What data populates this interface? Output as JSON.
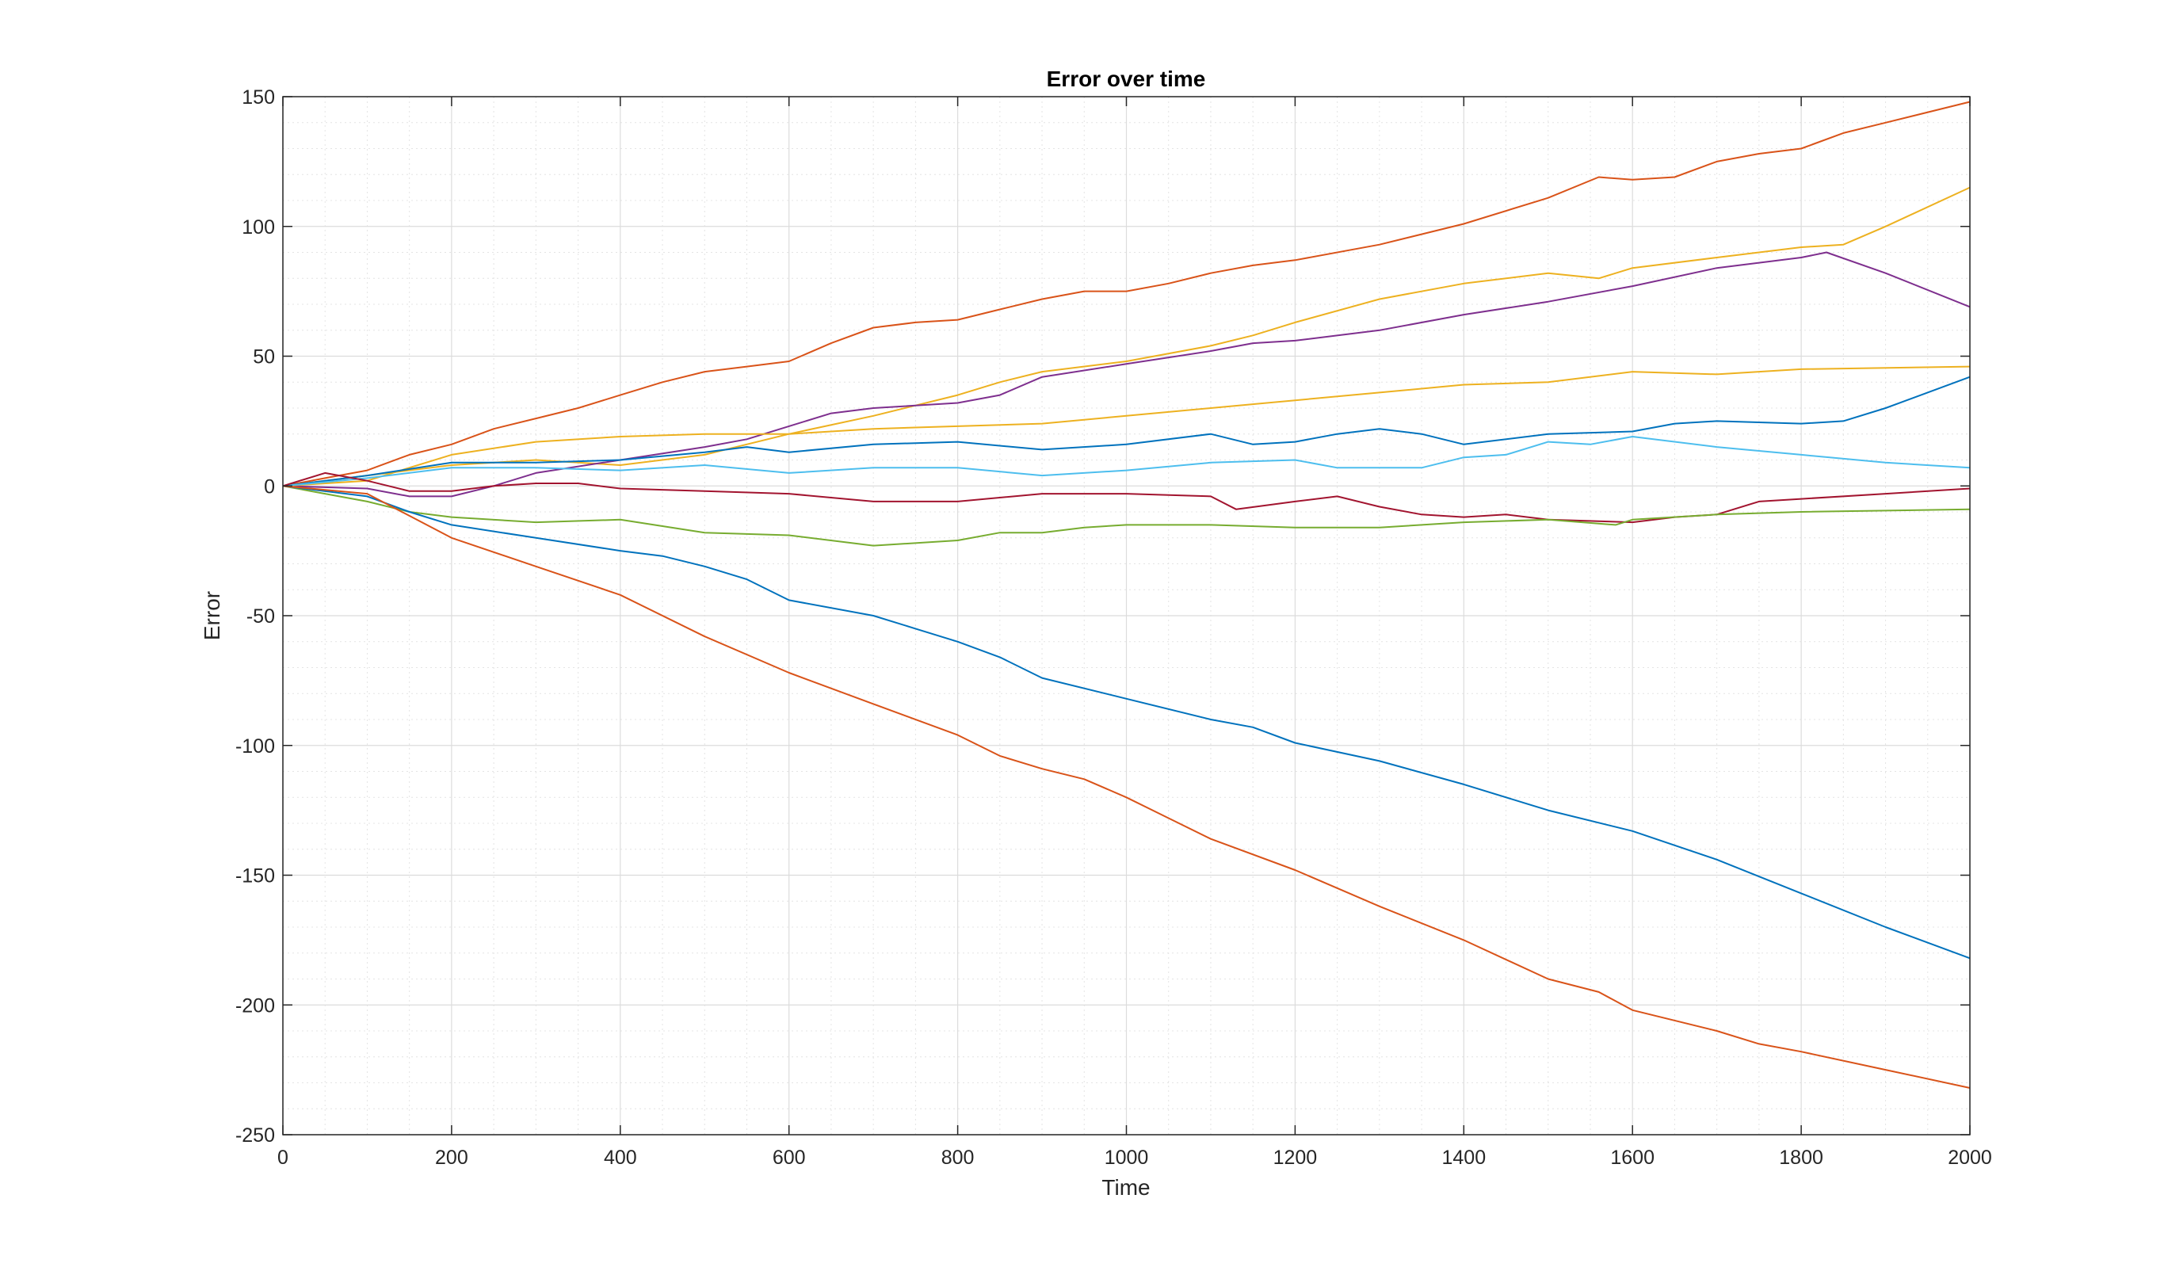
{
  "chart_data": {
    "type": "line",
    "title": "Error over time",
    "xlabel": "Time",
    "ylabel": "Error",
    "xlim": [
      0,
      2000
    ],
    "ylim": [
      -250,
      150
    ],
    "xticks": [
      0,
      200,
      400,
      600,
      800,
      1000,
      1200,
      1400,
      1600,
      1800,
      2000
    ],
    "yticks": [
      -250,
      -200,
      -150,
      -100,
      -50,
      0,
      50,
      100,
      150
    ],
    "grid": "major and minor",
    "legend": "none",
    "series": [
      {
        "color": "#D95319",
        "points": [
          [
            0,
            0
          ],
          [
            50,
            3
          ],
          [
            100,
            6
          ],
          [
            150,
            12
          ],
          [
            200,
            16
          ],
          [
            250,
            22
          ],
          [
            300,
            26
          ],
          [
            350,
            30
          ],
          [
            400,
            35
          ],
          [
            450,
            40
          ],
          [
            500,
            44
          ],
          [
            550,
            46
          ],
          [
            600,
            48
          ],
          [
            650,
            55
          ],
          [
            700,
            61
          ],
          [
            750,
            63
          ],
          [
            800,
            64
          ],
          [
            850,
            68
          ],
          [
            900,
            72
          ],
          [
            950,
            75
          ],
          [
            1000,
            75
          ],
          [
            1050,
            78
          ],
          [
            1100,
            82
          ],
          [
            1150,
            85
          ],
          [
            1200,
            87
          ],
          [
            1300,
            93
          ],
          [
            1400,
            101
          ],
          [
            1500,
            111
          ],
          [
            1560,
            119
          ],
          [
            1600,
            118
          ],
          [
            1650,
            119
          ],
          [
            1700,
            125
          ],
          [
            1750,
            128
          ],
          [
            1800,
            130
          ],
          [
            1850,
            136
          ],
          [
            1900,
            140
          ],
          [
            2000,
            148
          ]
        ]
      },
      {
        "color": "#EDB120",
        "points": [
          [
            0,
            0
          ],
          [
            100,
            4
          ],
          [
            200,
            8
          ],
          [
            300,
            10
          ],
          [
            400,
            8
          ],
          [
            500,
            12
          ],
          [
            600,
            20
          ],
          [
            700,
            27
          ],
          [
            800,
            35
          ],
          [
            850,
            40
          ],
          [
            900,
            44
          ],
          [
            1000,
            48
          ],
          [
            1100,
            54
          ],
          [
            1150,
            58
          ],
          [
            1200,
            63
          ],
          [
            1300,
            72
          ],
          [
            1400,
            78
          ],
          [
            1500,
            82
          ],
          [
            1560,
            80
          ],
          [
            1600,
            84
          ],
          [
            1700,
            88
          ],
          [
            1800,
            92
          ],
          [
            1850,
            93
          ],
          [
            1900,
            100
          ],
          [
            2000,
            115
          ]
        ]
      },
      {
        "color": "#7E2F8E",
        "points": [
          [
            0,
            0
          ],
          [
            100,
            -1
          ],
          [
            150,
            -4
          ],
          [
            200,
            -4
          ],
          [
            250,
            0
          ],
          [
            300,
            5
          ],
          [
            400,
            10
          ],
          [
            500,
            15
          ],
          [
            550,
            18
          ],
          [
            600,
            23
          ],
          [
            650,
            28
          ],
          [
            700,
            30
          ],
          [
            800,
            32
          ],
          [
            850,
            35
          ],
          [
            900,
            42
          ],
          [
            1000,
            47
          ],
          [
            1100,
            52
          ],
          [
            1150,
            55
          ],
          [
            1200,
            56
          ],
          [
            1300,
            60
          ],
          [
            1400,
            66
          ],
          [
            1500,
            71
          ],
          [
            1600,
            77
          ],
          [
            1700,
            84
          ],
          [
            1800,
            88
          ],
          [
            1830,
            90
          ],
          [
            1900,
            82
          ],
          [
            2000,
            69
          ]
        ]
      },
      {
        "color": "#EDB120",
        "points": [
          [
            0,
            0
          ],
          [
            100,
            2
          ],
          [
            200,
            12
          ],
          [
            300,
            17
          ],
          [
            400,
            19
          ],
          [
            500,
            20
          ],
          [
            600,
            20
          ],
          [
            700,
            22
          ],
          [
            800,
            23
          ],
          [
            900,
            24
          ],
          [
            1000,
            27
          ],
          [
            1100,
            30
          ],
          [
            1200,
            33
          ],
          [
            1300,
            36
          ],
          [
            1400,
            39
          ],
          [
            1500,
            40
          ],
          [
            1600,
            44
          ],
          [
            1700,
            43
          ],
          [
            1800,
            45
          ],
          [
            2000,
            46
          ]
        ]
      },
      {
        "color": "#0072BD",
        "points": [
          [
            0,
            0
          ],
          [
            100,
            4
          ],
          [
            200,
            9
          ],
          [
            300,
            9
          ],
          [
            400,
            10
          ],
          [
            500,
            13
          ],
          [
            550,
            15
          ],
          [
            600,
            13
          ],
          [
            700,
            16
          ],
          [
            800,
            17
          ],
          [
            900,
            14
          ],
          [
            1000,
            16
          ],
          [
            1100,
            20
          ],
          [
            1150,
            16
          ],
          [
            1200,
            17
          ],
          [
            1250,
            20
          ],
          [
            1300,
            22
          ],
          [
            1350,
            20
          ],
          [
            1400,
            16
          ],
          [
            1500,
            20
          ],
          [
            1600,
            21
          ],
          [
            1650,
            24
          ],
          [
            1700,
            25
          ],
          [
            1800,
            24
          ],
          [
            1850,
            25
          ],
          [
            1900,
            30
          ],
          [
            2000,
            42
          ]
        ]
      },
      {
        "color": "#4DBEEE",
        "points": [
          [
            0,
            0
          ],
          [
            100,
            3
          ],
          [
            200,
            7
          ],
          [
            300,
            7
          ],
          [
            400,
            6
          ],
          [
            500,
            8
          ],
          [
            600,
            5
          ],
          [
            700,
            7
          ],
          [
            800,
            7
          ],
          [
            900,
            4
          ],
          [
            1000,
            6
          ],
          [
            1100,
            9
          ],
          [
            1200,
            10
          ],
          [
            1250,
            7
          ],
          [
            1350,
            7
          ],
          [
            1400,
            11
          ],
          [
            1450,
            12
          ],
          [
            1500,
            17
          ],
          [
            1550,
            16
          ],
          [
            1600,
            19
          ],
          [
            1700,
            15
          ],
          [
            1800,
            12
          ],
          [
            1900,
            9
          ],
          [
            2000,
            7
          ]
        ]
      },
      {
        "color": "#A2142F",
        "points": [
          [
            0,
            0
          ],
          [
            50,
            5
          ],
          [
            100,
            2
          ],
          [
            150,
            -2
          ],
          [
            200,
            -2
          ],
          [
            250,
            0
          ],
          [
            300,
            1
          ],
          [
            350,
            1
          ],
          [
            400,
            -1
          ],
          [
            500,
            -2
          ],
          [
            600,
            -3
          ],
          [
            700,
            -6
          ],
          [
            800,
            -6
          ],
          [
            900,
            -3
          ],
          [
            1000,
            -3
          ],
          [
            1100,
            -4
          ],
          [
            1130,
            -9
          ],
          [
            1200,
            -6
          ],
          [
            1250,
            -4
          ],
          [
            1300,
            -8
          ],
          [
            1350,
            -11
          ],
          [
            1400,
            -12
          ],
          [
            1450,
            -11
          ],
          [
            1500,
            -13
          ],
          [
            1600,
            -14
          ],
          [
            1650,
            -12
          ],
          [
            1700,
            -11
          ],
          [
            1750,
            -6
          ],
          [
            1800,
            -5
          ],
          [
            1900,
            -3
          ],
          [
            2000,
            -1
          ]
        ]
      },
      {
        "color": "#77AC30",
        "points": [
          [
            0,
            0
          ],
          [
            50,
            -3
          ],
          [
            100,
            -6
          ],
          [
            150,
            -10
          ],
          [
            200,
            -12
          ],
          [
            300,
            -14
          ],
          [
            400,
            -13
          ],
          [
            500,
            -18
          ],
          [
            600,
            -19
          ],
          [
            700,
            -23
          ],
          [
            800,
            -21
          ],
          [
            850,
            -18
          ],
          [
            900,
            -18
          ],
          [
            950,
            -16
          ],
          [
            1000,
            -15
          ],
          [
            1100,
            -15
          ],
          [
            1200,
            -16
          ],
          [
            1300,
            -16
          ],
          [
            1400,
            -14
          ],
          [
            1500,
            -13
          ],
          [
            1580,
            -15
          ],
          [
            1600,
            -13
          ],
          [
            1700,
            -11
          ],
          [
            1800,
            -10
          ],
          [
            2000,
            -9
          ]
        ]
      },
      {
        "color": "#0072BD",
        "points": [
          [
            0,
            0
          ],
          [
            100,
            -4
          ],
          [
            150,
            -10
          ],
          [
            200,
            -15
          ],
          [
            300,
            -20
          ],
          [
            400,
            -25
          ],
          [
            450,
            -27
          ],
          [
            500,
            -31
          ],
          [
            550,
            -36
          ],
          [
            600,
            -44
          ],
          [
            700,
            -50
          ],
          [
            750,
            -55
          ],
          [
            800,
            -60
          ],
          [
            850,
            -66
          ],
          [
            900,
            -74
          ],
          [
            1000,
            -82
          ],
          [
            1100,
            -90
          ],
          [
            1150,
            -93
          ],
          [
            1200,
            -99
          ],
          [
            1300,
            -106
          ],
          [
            1400,
            -115
          ],
          [
            1500,
            -125
          ],
          [
            1600,
            -133
          ],
          [
            1700,
            -144
          ],
          [
            1800,
            -157
          ],
          [
            1900,
            -170
          ],
          [
            2000,
            -182
          ]
        ]
      },
      {
        "color": "#D95319",
        "points": [
          [
            0,
            0
          ],
          [
            100,
            -3
          ],
          [
            200,
            -20
          ],
          [
            300,
            -31
          ],
          [
            400,
            -42
          ],
          [
            500,
            -58
          ],
          [
            600,
            -72
          ],
          [
            700,
            -84
          ],
          [
            800,
            -96
          ],
          [
            850,
            -104
          ],
          [
            900,
            -109
          ],
          [
            950,
            -113
          ],
          [
            1000,
            -120
          ],
          [
            1050,
            -128
          ],
          [
            1100,
            -136
          ],
          [
            1200,
            -148
          ],
          [
            1300,
            -162
          ],
          [
            1400,
            -175
          ],
          [
            1500,
            -190
          ],
          [
            1560,
            -195
          ],
          [
            1600,
            -202
          ],
          [
            1700,
            -210
          ],
          [
            1750,
            -215
          ],
          [
            1800,
            -218
          ],
          [
            1900,
            -225
          ],
          [
            2000,
            -232
          ]
        ]
      }
    ]
  }
}
